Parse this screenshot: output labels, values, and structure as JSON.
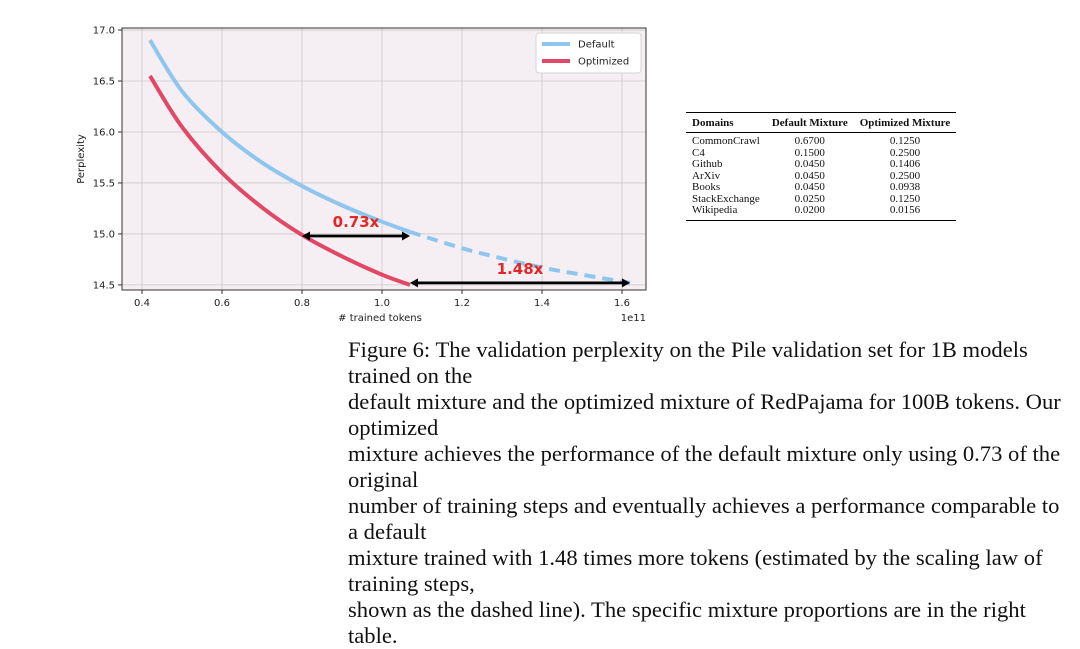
{
  "chart_data": {
    "type": "line",
    "xlabel": "# trained tokens",
    "ylabel": "Perplexity",
    "x_multiplier_label": "1e11",
    "xlim": [
      0.35,
      1.66
    ],
    "ylim": [
      14.45,
      17.02
    ],
    "x_ticks": [
      "0.4",
      "0.6",
      "0.8",
      "1.0",
      "1.2",
      "1.4",
      "1.6"
    ],
    "y_ticks": [
      "14.5",
      "15.0",
      "15.5",
      "16.0",
      "16.5",
      "17.0"
    ],
    "grid": true,
    "legend_position": "top-right",
    "series": [
      {
        "name": "Default",
        "color": "#8ec6ee",
        "style": "solid",
        "x": [
          0.42,
          0.5,
          0.6,
          0.7,
          0.8,
          0.9,
          1.0,
          1.07
        ],
        "y": [
          16.9,
          16.4,
          16.0,
          15.7,
          15.47,
          15.28,
          15.12,
          15.02
        ]
      },
      {
        "name": "Default",
        "show_in_legend": false,
        "color": "#8ec6ee",
        "style": "dashed",
        "x": [
          1.07,
          1.2,
          1.3,
          1.4,
          1.5,
          1.62
        ],
        "y": [
          15.02,
          14.86,
          14.76,
          14.67,
          14.6,
          14.52
        ]
      },
      {
        "name": "Optimized",
        "color": "#e34766",
        "style": "solid",
        "x": [
          0.42,
          0.5,
          0.6,
          0.7,
          0.8,
          0.9,
          1.0,
          1.07
        ],
        "y": [
          16.55,
          16.05,
          15.6,
          15.26,
          14.99,
          14.78,
          14.6,
          14.5
        ]
      }
    ],
    "annotations": [
      {
        "text": "0.73x",
        "x_from": 0.8,
        "x_to": 1.07,
        "y": 14.98,
        "color": "#e32626"
      },
      {
        "text": "1.48x",
        "x_from": 1.07,
        "x_to": 1.62,
        "y": 14.52,
        "color": "#e32626"
      }
    ]
  },
  "table": {
    "headers": [
      "Domains",
      "Default Mixture",
      "Optimized Mixture"
    ],
    "rows": [
      [
        "CommonCrawl",
        "0.6700",
        "0.1250"
      ],
      [
        "C4",
        "0.1500",
        "0.2500"
      ],
      [
        "Github",
        "0.0450",
        "0.1406"
      ],
      [
        "ArXiv",
        "0.0450",
        "0.2500"
      ],
      [
        "Books",
        "0.0450",
        "0.0938"
      ],
      [
        "StackExchange",
        "0.0250",
        "0.1250"
      ],
      [
        "Wikipedia",
        "0.0200",
        "0.0156"
      ]
    ]
  },
  "caption": "Figure 6: The validation perplexity on the Pile validation set for 1B models trained on the\ndefault mixture and the optimized mixture of RedPajama for 100B tokens. Our optimized\nmixture achieves the performance of the default mixture only using 0.73 of the original\nnumber of training steps and eventually achieves a performance comparable to a default\nmixture trained with 1.48 times more tokens (estimated by the scaling law of training steps,\nshown as the dashed line). The specific mixture proportions are in the right table."
}
